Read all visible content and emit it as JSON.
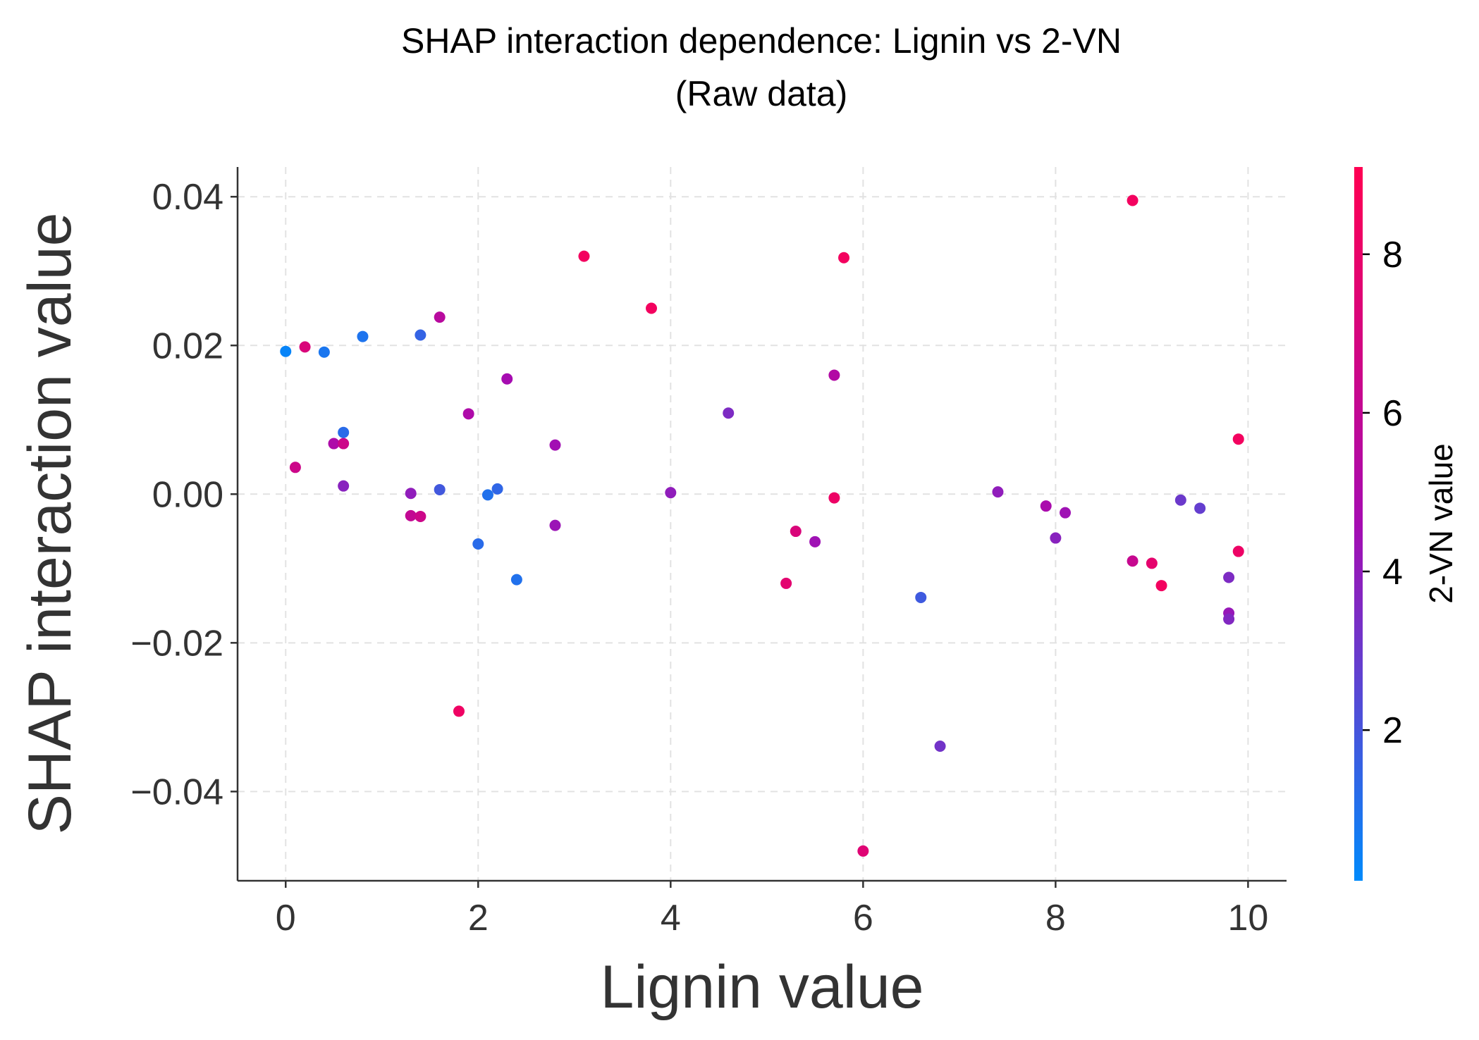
{
  "chart_data": {
    "type": "scatter",
    "title_line1": "SHAP interaction dependence: Lignin vs 2-VN",
    "title_line2": "(Raw data)",
    "xlabel": "Lignin value",
    "ylabel": "SHAP interaction value",
    "xlim": [
      -0.5,
      10.4
    ],
    "ylim": [
      -0.052,
      0.044
    ],
    "x_ticks": [
      0,
      2,
      4,
      6,
      8,
      10
    ],
    "x_tick_labels": [
      "0",
      "2",
      "4",
      "6",
      "8",
      "10"
    ],
    "y_ticks": [
      0.04,
      0.02,
      0.0,
      -0.02,
      -0.04
    ],
    "y_tick_labels": [
      "0.04",
      "0.02",
      "0.00",
      "−0.02",
      "−0.04"
    ],
    "grid": true,
    "colorbar": {
      "label": "2-VN value",
      "range": [
        0.1,
        9.1
      ],
      "ticks": [
        2,
        4,
        6,
        8
      ],
      "tick_labels": [
        "2",
        "4",
        "6",
        "8"
      ],
      "color_low": "#008afb",
      "color_mid": "#a60cb1",
      "color_high": "#ff0052"
    },
    "points": [
      {
        "x": 0.0,
        "y": 0.0192,
        "c": 0.3
      },
      {
        "x": 0.1,
        "y": 0.0036,
        "c": 6.5
      },
      {
        "x": 0.2,
        "y": 0.0198,
        "c": 7.2
      },
      {
        "x": 0.4,
        "y": 0.0191,
        "c": 0.8
      },
      {
        "x": 0.5,
        "y": 0.0068,
        "c": 5.0
      },
      {
        "x": 0.6,
        "y": 0.0068,
        "c": 6.5
      },
      {
        "x": 0.6,
        "y": 0.0083,
        "c": 1.2
      },
      {
        "x": 0.6,
        "y": 0.0011,
        "c": 3.8
      },
      {
        "x": 0.8,
        "y": 0.0212,
        "c": 0.9
      },
      {
        "x": 1.3,
        "y": 0.0001,
        "c": 4.0
      },
      {
        "x": 1.3,
        "y": -0.0029,
        "c": 6.0
      },
      {
        "x": 1.4,
        "y": -0.003,
        "c": 6.5
      },
      {
        "x": 1.4,
        "y": 0.0214,
        "c": 1.5
      },
      {
        "x": 1.6,
        "y": 0.0006,
        "c": 1.9
      },
      {
        "x": 1.6,
        "y": 0.0238,
        "c": 5.5
      },
      {
        "x": 1.8,
        "y": -0.0292,
        "c": 8.3
      },
      {
        "x": 1.9,
        "y": 0.0108,
        "c": 5.0
      },
      {
        "x": 2.0,
        "y": -0.0067,
        "c": 1.2
      },
      {
        "x": 2.1,
        "y": -0.0001,
        "c": 1.0
      },
      {
        "x": 2.2,
        "y": 0.0007,
        "c": 1.4
      },
      {
        "x": 2.3,
        "y": 0.0155,
        "c": 4.6
      },
      {
        "x": 2.4,
        "y": -0.0115,
        "c": 1.0
      },
      {
        "x": 2.8,
        "y": 0.0066,
        "c": 4.5
      },
      {
        "x": 2.8,
        "y": -0.0042,
        "c": 4.3
      },
      {
        "x": 3.1,
        "y": 0.032,
        "c": 8.5
      },
      {
        "x": 3.8,
        "y": 0.025,
        "c": 8.5
      },
      {
        "x": 4.0,
        "y": 0.0002,
        "c": 4.0
      },
      {
        "x": 4.6,
        "y": 0.0109,
        "c": 3.5
      },
      {
        "x": 5.2,
        "y": -0.012,
        "c": 7.7
      },
      {
        "x": 5.3,
        "y": -0.005,
        "c": 7.2
      },
      {
        "x": 5.5,
        "y": -0.0064,
        "c": 4.4
      },
      {
        "x": 5.7,
        "y": 0.016,
        "c": 5.2
      },
      {
        "x": 5.7,
        "y": -0.0005,
        "c": 8.2
      },
      {
        "x": 5.8,
        "y": 0.0318,
        "c": 8.5
      },
      {
        "x": 6.0,
        "y": -0.048,
        "c": 7.5
      },
      {
        "x": 6.6,
        "y": -0.0139,
        "c": 1.8
      },
      {
        "x": 6.8,
        "y": -0.0339,
        "c": 3.2
      },
      {
        "x": 7.4,
        "y": 0.0003,
        "c": 4.0
      },
      {
        "x": 7.9,
        "y": -0.0016,
        "c": 4.8
      },
      {
        "x": 8.0,
        "y": -0.0059,
        "c": 3.8
      },
      {
        "x": 8.1,
        "y": -0.0025,
        "c": 4.4
      },
      {
        "x": 8.8,
        "y": 0.0395,
        "c": 8.5
      },
      {
        "x": 8.8,
        "y": -0.009,
        "c": 6.2
      },
      {
        "x": 9.0,
        "y": -0.0093,
        "c": 7.8
      },
      {
        "x": 9.1,
        "y": -0.0123,
        "c": 8.5
      },
      {
        "x": 9.3,
        "y": -0.0008,
        "c": 3.0
      },
      {
        "x": 9.5,
        "y": -0.0019,
        "c": 2.8
      },
      {
        "x": 9.8,
        "y": -0.0112,
        "c": 3.5
      },
      {
        "x": 9.8,
        "y": -0.016,
        "c": 4.2
      },
      {
        "x": 9.8,
        "y": -0.0168,
        "c": 3.6
      },
      {
        "x": 9.9,
        "y": 0.0074,
        "c": 8.5
      },
      {
        "x": 9.9,
        "y": -0.0077,
        "c": 8.2
      }
    ]
  }
}
